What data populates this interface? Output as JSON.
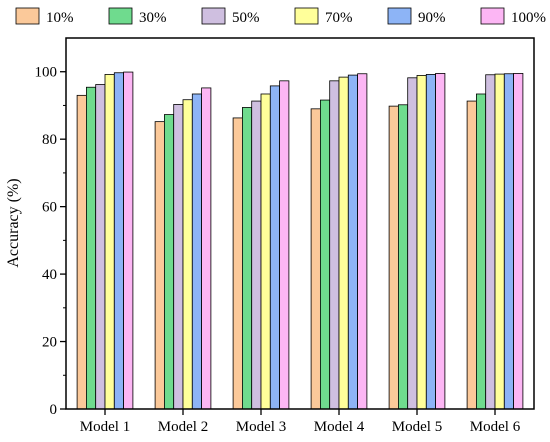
{
  "chart_data": {
    "type": "bar",
    "title": "",
    "xlabel": "",
    "ylabel": "Accuracy (%)",
    "ylim": [
      0,
      110
    ],
    "yticks": [
      "0",
      "20",
      "40",
      "60",
      "80",
      "100"
    ],
    "grid": false,
    "legend_position": "top",
    "categories": [
      "Model 1",
      "Model 2",
      "Model 3",
      "Model 4",
      "Model 5",
      "Model 6"
    ],
    "series": [
      {
        "name": "10%",
        "color": "#FBC99A",
        "values": [
          93.0,
          85.2,
          86.3,
          89.0,
          89.8,
          91.3
        ]
      },
      {
        "name": "30%",
        "color": "#6FDB8E",
        "values": [
          95.4,
          87.3,
          89.4,
          91.6,
          90.2,
          93.4
        ]
      },
      {
        "name": "50%",
        "color": "#CFBFE0",
        "values": [
          96.2,
          90.3,
          91.3,
          97.3,
          98.2,
          99.1
        ]
      },
      {
        "name": "70%",
        "color": "#FFFF9A",
        "values": [
          99.2,
          91.7,
          93.4,
          98.4,
          98.9,
          99.3
        ]
      },
      {
        "name": "90%",
        "color": "#8DB4F6",
        "values": [
          99.7,
          93.4,
          95.8,
          99.0,
          99.2,
          99.4
        ]
      },
      {
        "name": "100%",
        "color": "#FCB6F4",
        "values": [
          99.9,
          95.2,
          97.3,
          99.4,
          99.5,
          99.5
        ]
      }
    ]
  }
}
